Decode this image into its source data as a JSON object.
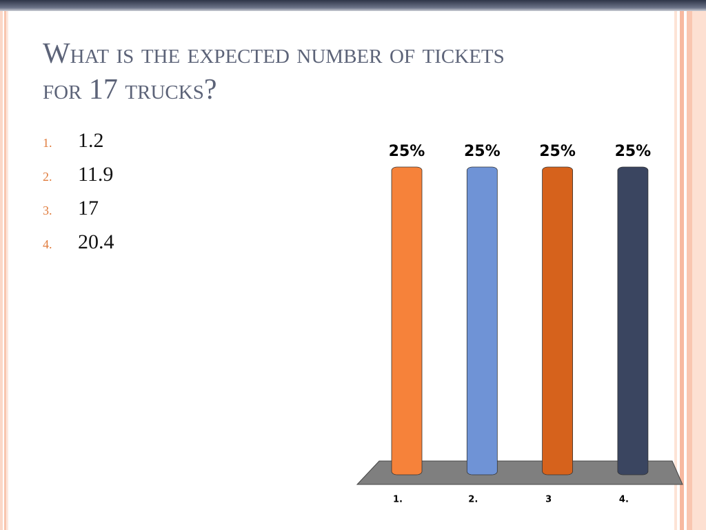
{
  "slide": {
    "title": "What is the expected number of tickets for 17 trucks?",
    "items": [
      {
        "number": "1.",
        "text": "1.2"
      },
      {
        "number": "2.",
        "text": "11.9"
      },
      {
        "number": "3.",
        "text": "17"
      },
      {
        "number": "4.",
        "text": "20.4"
      }
    ]
  },
  "chart_data": {
    "type": "bar",
    "categories": [
      "1.",
      "2.",
      "3",
      "4."
    ],
    "values": [
      25,
      25,
      25,
      25
    ],
    "value_labels": [
      "25%",
      "25%",
      "25%",
      "25%"
    ],
    "colors": [
      "#f6823a",
      "#6f93d6",
      "#d6621c",
      "#3a4560"
    ]
  }
}
